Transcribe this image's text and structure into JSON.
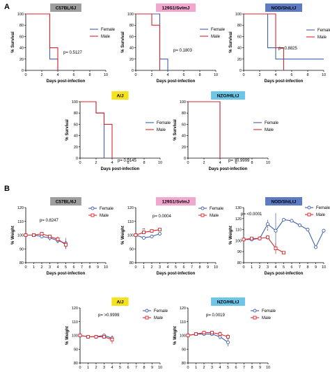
{
  "panels": [
    {
      "label": "A"
    },
    {
      "label": "B"
    }
  ],
  "colors": {
    "female": "#3f5fb0",
    "male": "#d9262d",
    "axis": "#000000"
  },
  "chart_data": [
    {
      "type": "line",
      "step": true,
      "title": "C57BL/6J",
      "title_bg": "#9e9e9e",
      "xlabel": "Days post-infection",
      "ylabel": "% Survival",
      "xlim": [
        0,
        10
      ],
      "ylim": [
        0,
        100
      ],
      "xticks": [
        0,
        2,
        4,
        6,
        8,
        10
      ],
      "yticks": [
        0,
        20,
        40,
        60,
        80,
        100
      ],
      "pvalue": "p= 0.5127",
      "series": [
        {
          "name": "Female",
          "x": [
            0,
            3,
            4
          ],
          "y": [
            100,
            20,
            0
          ]
        },
        {
          "name": "Male",
          "x": [
            0,
            3,
            4
          ],
          "y": [
            100,
            40,
            0
          ]
        }
      ]
    },
    {
      "type": "line",
      "step": true,
      "title": "129S1/SvImJ",
      "title_bg": "#f2a7cf",
      "xlabel": "Days post-infection",
      "ylabel": "% Survival",
      "xlim": [
        0,
        10
      ],
      "ylim": [
        0,
        100
      ],
      "xticks": [
        0,
        2,
        4,
        6,
        8,
        10
      ],
      "yticks": [
        0,
        20,
        40,
        60,
        80,
        100
      ],
      "pvalue": "p= 0.1803",
      "series": [
        {
          "name": "Female",
          "x": [
            0,
            3,
            4
          ],
          "y": [
            100,
            20,
            0
          ]
        },
        {
          "name": "Male",
          "x": [
            0,
            2,
            3
          ],
          "y": [
            100,
            80,
            0
          ]
        }
      ]
    },
    {
      "type": "line",
      "step": true,
      "title": "NOD/ShiLtJ",
      "title_bg": "#5d7bc4",
      "xlabel": "Days post-infection",
      "ylabel": "% Survival",
      "xlim": [
        0,
        10
      ],
      "ylim": [
        0,
        100
      ],
      "xticks": [
        0,
        2,
        4,
        6,
        8,
        10
      ],
      "yticks": [
        0,
        20,
        40,
        60,
        80,
        100
      ],
      "pvalue": "p= 0.8825",
      "series": [
        {
          "name": "Female",
          "x": [
            0,
            3,
            4,
            10
          ],
          "y": [
            100,
            40,
            20,
            20
          ]
        },
        {
          "name": "Male",
          "x": [
            0,
            4,
            5
          ],
          "y": [
            100,
            40,
            0
          ]
        }
      ]
    },
    {
      "type": "line",
      "step": true,
      "title": "A/J",
      "title_bg": "#f4e21a",
      "xlabel": "Days post-infection",
      "ylabel": "% Survival",
      "xlim": [
        0,
        10
      ],
      "ylim": [
        0,
        100
      ],
      "xticks": [
        0,
        2,
        4,
        6,
        8,
        10
      ],
      "yticks": [
        0,
        20,
        40,
        60,
        80,
        100
      ],
      "pvalue": "p= 0.0145",
      "series": [
        {
          "name": "Female",
          "x": [
            0,
            2,
            3
          ],
          "y": [
            100,
            80,
            0
          ]
        },
        {
          "name": "Male",
          "x": [
            0,
            2,
            3,
            4
          ],
          "y": [
            100,
            80,
            60,
            0
          ]
        }
      ]
    },
    {
      "type": "line",
      "step": true,
      "title": "NZO/HILtJ",
      "title_bg": "#6cc6e8",
      "xlabel": "Days post-infection",
      "ylabel": "% Survival",
      "xlim": [
        0,
        10
      ],
      "ylim": [
        0,
        100
      ],
      "xticks": [
        0,
        2,
        4,
        6,
        8,
        10
      ],
      "yticks": [
        0,
        20,
        40,
        60,
        80,
        100
      ],
      "pvalue": "p= >0.9999",
      "series": [
        {
          "name": "Female",
          "x": [
            0,
            4
          ],
          "y": [
            100,
            0
          ]
        },
        {
          "name": "Male",
          "x": [
            0,
            4
          ],
          "y": [
            100,
            0
          ]
        }
      ]
    },
    {
      "type": "line",
      "markers": true,
      "title": "C57BL/6J",
      "title_bg": "#9e9e9e",
      "xlabel": "Days post-infection",
      "ylabel": "% Weight",
      "xlim": [
        0,
        10
      ],
      "ylim": [
        80,
        120
      ],
      "xticks": [
        0,
        1,
        2,
        3,
        4,
        5,
        6,
        7,
        8,
        9,
        10
      ],
      "yticks": [
        80,
        90,
        100,
        110,
        120
      ],
      "pvalue": "p= 0.8247",
      "series": [
        {
          "name": "Female",
          "x": [
            0,
            1,
            2,
            3,
            4,
            5
          ],
          "y": [
            100,
            100,
            99,
            98,
            96,
            94
          ],
          "err": [
            0,
            1,
            1,
            2,
            2,
            4
          ]
        },
        {
          "name": "Male",
          "x": [
            0,
            1,
            2,
            3,
            4,
            5
          ],
          "y": [
            100,
            100,
            101,
            99,
            97,
            93
          ],
          "err": [
            0,
            1,
            1,
            1,
            2,
            3
          ]
        }
      ]
    },
    {
      "type": "line",
      "markers": true,
      "title": "129S1/SvImJ",
      "title_bg": "#f2a7cf",
      "xlabel": "Days post-infection",
      "ylabel": "% Weight",
      "xlim": [
        0,
        10
      ],
      "ylim": [
        80,
        120
      ],
      "xticks": [
        0,
        1,
        2,
        3,
        4,
        5,
        6,
        7,
        8,
        9,
        10
      ],
      "yticks": [
        80,
        90,
        100,
        110,
        120
      ],
      "pvalue": "p= 0.0004",
      "annotations": [
        {
          "x": 1,
          "y": 103,
          "text": "**"
        }
      ],
      "series": [
        {
          "name": "Female",
          "x": [
            0,
            1,
            2,
            3
          ],
          "y": [
            100,
            98,
            99,
            101
          ],
          "err": [
            0,
            1,
            1,
            1
          ]
        },
        {
          "name": "Male",
          "x": [
            0,
            1,
            2,
            3
          ],
          "y": [
            100,
            102,
            103,
            104
          ],
          "err": [
            0,
            1,
            1,
            1
          ]
        }
      ]
    },
    {
      "type": "line",
      "markers": true,
      "title": "NOD/ShiLtJ",
      "title_bg": "#5d7bc4",
      "xlabel": "Days post-infection",
      "ylabel": "% Weight",
      "xlim": [
        0,
        10
      ],
      "ylim": [
        80,
        130
      ],
      "xticks": [
        0,
        1,
        2,
        3,
        4,
        5,
        6,
        7,
        8,
        9,
        10
      ],
      "yticks": [
        80,
        90,
        100,
        110,
        120,
        130
      ],
      "pvalue": "p= <0.0001",
      "annotations": [
        {
          "x": 3,
          "y": 108,
          "text": "*"
        }
      ],
      "series": [
        {
          "name": "Female",
          "x": [
            0,
            1,
            2,
            3,
            4,
            5,
            6,
            7,
            8,
            9,
            10
          ],
          "y": [
            101,
            101,
            102,
            115,
            109,
            119,
            118,
            114,
            110,
            94,
            109
          ],
          "err": [
            0,
            1,
            2,
            4,
            16,
            0,
            0,
            0,
            0,
            0,
            0
          ]
        },
        {
          "name": "Male",
          "x": [
            0,
            1,
            2,
            3,
            4,
            5
          ],
          "y": [
            101,
            102,
            102,
            103,
            93,
            89
          ],
          "err": [
            0,
            1,
            1,
            2,
            5,
            0
          ]
        }
      ]
    },
    {
      "type": "line",
      "markers": true,
      "title": "A/J",
      "title_bg": "#f4e21a",
      "xlabel": "Days post-infection",
      "ylabel": "% Weight",
      "xlim": [
        0,
        10
      ],
      "ylim": [
        80,
        120
      ],
      "xticks": [
        0,
        1,
        2,
        3,
        4,
        5,
        6,
        7,
        8,
        9,
        10
      ],
      "yticks": [
        80,
        90,
        100,
        110,
        120
      ],
      "pvalue": "p= >0.9999",
      "series": [
        {
          "name": "Female",
          "x": [
            0,
            1,
            2,
            3,
            4
          ],
          "y": [
            100,
            99,
            99,
            100,
            98
          ],
          "err": [
            0,
            1,
            1,
            1,
            2
          ]
        },
        {
          "name": "Male",
          "x": [
            0,
            1,
            2,
            3,
            4
          ],
          "y": [
            100,
            99,
            99,
            99,
            97
          ],
          "err": [
            0,
            1,
            1,
            1,
            3
          ]
        }
      ]
    },
    {
      "type": "line",
      "markers": true,
      "title": "NZO/HILtJ",
      "title_bg": "#6cc6e8",
      "xlabel": "Days post-infection",
      "ylabel": "% Weight",
      "xlim": [
        0,
        10
      ],
      "ylim": [
        80,
        120
      ],
      "xticks": [
        0,
        1,
        2,
        3,
        4,
        5,
        6,
        7,
        8,
        9,
        10
      ],
      "yticks": [
        80,
        90,
        100,
        110,
        120
      ],
      "pvalue": "p= 0.0019",
      "series": [
        {
          "name": "Female",
          "x": [
            0,
            1,
            2,
            3,
            4,
            5
          ],
          "y": [
            100,
            101,
            101,
            101,
            99,
            95
          ],
          "err": [
            0,
            1,
            1,
            1,
            2,
            3
          ]
        },
        {
          "name": "Male",
          "x": [
            0,
            1,
            2,
            3,
            4,
            5
          ],
          "y": [
            100,
            101,
            102,
            102,
            101,
            99
          ],
          "err": [
            0,
            1,
            1,
            1,
            2,
            2
          ]
        }
      ]
    }
  ]
}
